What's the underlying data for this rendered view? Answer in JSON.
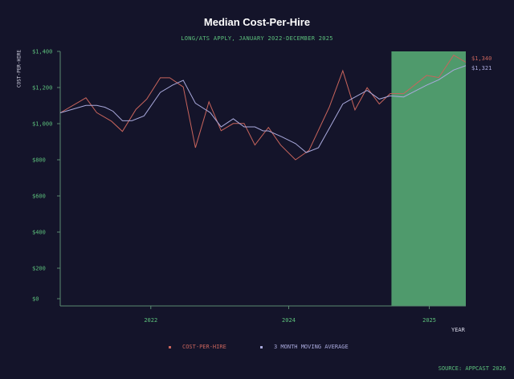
{
  "chart_data": {
    "type": "line",
    "title": "Median Cost-Per-Hire",
    "subtitle": "LONG/ATS APPLY, JANUARY 2022-DECEMBER 2025",
    "xlabel": "YEAR",
    "ylabel": "COST-PER-HIRE",
    "ylim": [
      0,
      1400
    ],
    "xlim": [
      0,
      30
    ],
    "yticks": [
      {
        "v": 0,
        "label": "$0"
      },
      {
        "v": 200,
        "label": "$200"
      },
      {
        "v": 400,
        "label": "$400"
      },
      {
        "v": 600,
        "label": "$600"
      },
      {
        "v": 800,
        "label": "$800"
      },
      {
        "v": 1000,
        "label": "$1,000"
      },
      {
        "v": 1200,
        "label": "$1,200"
      },
      {
        "v": 1400,
        "label": "$1,400"
      }
    ],
    "xticks": [
      {
        "v": 6.7,
        "label": "2022"
      },
      {
        "v": 16.9,
        "label": "2024"
      },
      {
        "v": 27.3,
        "label": "2025"
      }
    ],
    "highlight_range": [
      24.5,
      30
    ],
    "series": [
      {
        "name": "COST-PER-HIRE",
        "color": "#c8645c",
        "end_label": "$1,340",
        "x": [
          0,
          1.9,
          2.7,
          3.8,
          4.6,
          5.6,
          6.4,
          7.4,
          8.1,
          9.1,
          10.0,
          11.0,
          11.9,
          12.8,
          13.6,
          14.4,
          15.4,
          16.3,
          17.4,
          18.4,
          19.9,
          20.9,
          21.8,
          22.7,
          23.6,
          24.4,
          25.4,
          27.1,
          28.0,
          29.1,
          30.0
        ],
        "values": [
          1060,
          1143,
          1061,
          1013,
          957,
          1079,
          1136,
          1254,
          1254,
          1203,
          867,
          1121,
          961,
          1001,
          1001,
          882,
          979,
          882,
          800,
          852,
          1091,
          1293,
          1076,
          1199,
          1109,
          1166,
          1166,
          1267,
          1255,
          1379,
          1340
        ]
      },
      {
        "name": "3 MONTH MOVING AVERAGE",
        "color": "#a9a9dc",
        "end_label": "$1,321",
        "x": [
          0,
          1.9,
          2.7,
          3.3,
          3.9,
          4.6,
          5.3,
          6.2,
          7.4,
          8.3,
          9.1,
          10.0,
          11.1,
          11.9,
          12.8,
          13.6,
          14.4,
          15.0,
          15.4,
          16.4,
          17.4,
          18.2,
          19.1,
          20.0,
          20.9,
          21.7,
          22.7,
          23.6,
          24.4,
          25.4,
          27.1,
          28.0,
          29.1,
          30.0
        ],
        "values": [
          1060,
          1101,
          1101,
          1091,
          1069,
          1016,
          1016,
          1043,
          1173,
          1213,
          1240,
          1113,
          1061,
          982,
          1027,
          982,
          982,
          960,
          960,
          927,
          890,
          840,
          867,
          987,
          1109,
          1143,
          1184,
          1136,
          1154,
          1148,
          1213,
          1243,
          1297,
          1321
        ]
      }
    ],
    "source": "SOURCE: APPCAST 2026"
  }
}
